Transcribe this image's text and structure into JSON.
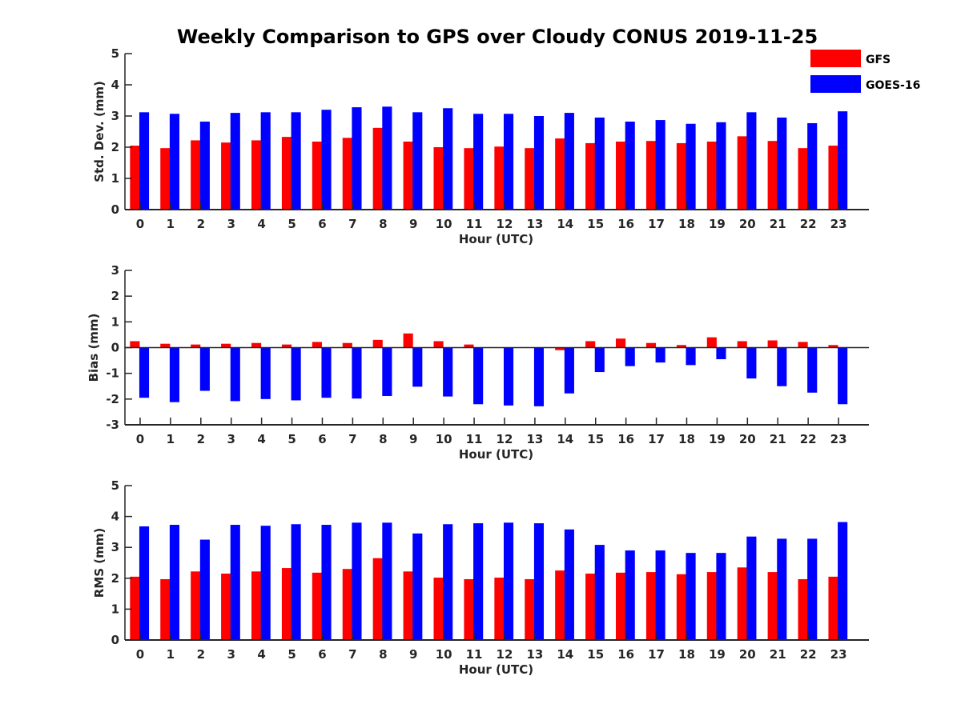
{
  "title": "Weekly Comparison to GPS over Cloudy CONUS 2019-11-25",
  "legend": {
    "placement": "top-right",
    "items": [
      {
        "label": "GFS",
        "color": "#ff0000"
      },
      {
        "label": "GOES-16",
        "color": "#0000ff"
      }
    ]
  },
  "chart_data": [
    {
      "type": "bar",
      "xlabel": "Hour (UTC)",
      "ylabel": "Std. Dev. (mm)",
      "ylim": [
        0,
        5
      ],
      "yticks": [
        0,
        1,
        2,
        3,
        4,
        5
      ],
      "categories": [
        "0",
        "1",
        "2",
        "3",
        "4",
        "5",
        "6",
        "7",
        "8",
        "9",
        "10",
        "11",
        "12",
        "13",
        "14",
        "15",
        "16",
        "17",
        "18",
        "19",
        "20",
        "21",
        "22",
        "23"
      ],
      "series": [
        {
          "name": "GFS",
          "color": "#ff0000",
          "values": [
            2.05,
            1.97,
            2.22,
            2.15,
            2.22,
            2.33,
            2.18,
            2.3,
            2.62,
            2.18,
            2.0,
            1.97,
            2.02,
            1.97,
            2.28,
            2.13,
            2.18,
            2.2,
            2.13,
            2.18,
            2.35,
            2.2,
            1.97,
            2.05
          ]
        },
        {
          "name": "GOES-16",
          "color": "#0000ff",
          "values": [
            3.12,
            3.07,
            2.82,
            3.1,
            3.12,
            3.12,
            3.2,
            3.28,
            3.3,
            3.12,
            3.25,
            3.07,
            3.07,
            3.0,
            3.1,
            2.95,
            2.82,
            2.87,
            2.75,
            2.8,
            3.12,
            2.95,
            2.77,
            3.15
          ]
        }
      ]
    },
    {
      "type": "bar",
      "xlabel": "Hour (UTC)",
      "ylabel": "Bias (mm)",
      "ylim": [
        -3,
        3
      ],
      "yticks": [
        -3,
        -2,
        -1,
        0,
        1,
        2,
        3
      ],
      "categories": [
        "0",
        "1",
        "2",
        "3",
        "4",
        "5",
        "6",
        "7",
        "8",
        "9",
        "10",
        "11",
        "12",
        "13",
        "14",
        "15",
        "16",
        "17",
        "18",
        "19",
        "20",
        "21",
        "22",
        "23"
      ],
      "series": [
        {
          "name": "GFS",
          "color": "#ff0000",
          "values": [
            0.25,
            0.15,
            0.12,
            0.15,
            0.18,
            0.12,
            0.22,
            0.18,
            0.3,
            0.55,
            0.25,
            0.12,
            0.0,
            0.0,
            -0.1,
            0.25,
            0.35,
            0.18,
            0.1,
            0.4,
            0.25,
            0.28,
            0.22,
            0.1
          ]
        },
        {
          "name": "GOES-16",
          "color": "#0000ff",
          "values": [
            -1.95,
            -2.12,
            -1.68,
            -2.08,
            -2.0,
            -2.05,
            -1.95,
            -1.98,
            -1.88,
            -1.52,
            -1.9,
            -2.2,
            -2.25,
            -2.28,
            -1.78,
            -0.95,
            -0.72,
            -0.58,
            -0.68,
            -0.45,
            -1.2,
            -1.5,
            -1.75,
            -2.2
          ]
        }
      ]
    },
    {
      "type": "bar",
      "xlabel": "Hour (UTC)",
      "ylabel": "RMS (mm)",
      "ylim": [
        0,
        5
      ],
      "yticks": [
        0,
        1,
        2,
        3,
        4,
        5
      ],
      "categories": [
        "0",
        "1",
        "2",
        "3",
        "4",
        "5",
        "6",
        "7",
        "8",
        "9",
        "10",
        "11",
        "12",
        "13",
        "14",
        "15",
        "16",
        "17",
        "18",
        "19",
        "20",
        "21",
        "22",
        "23"
      ],
      "series": [
        {
          "name": "GFS",
          "color": "#ff0000",
          "values": [
            2.05,
            1.97,
            2.22,
            2.15,
            2.22,
            2.33,
            2.18,
            2.3,
            2.65,
            2.22,
            2.02,
            1.97,
            2.02,
            1.97,
            2.25,
            2.15,
            2.18,
            2.2,
            2.13,
            2.2,
            2.35,
            2.2,
            1.97,
            2.05
          ]
        },
        {
          "name": "GOES-16",
          "color": "#0000ff",
          "values": [
            3.68,
            3.73,
            3.25,
            3.73,
            3.7,
            3.75,
            3.73,
            3.8,
            3.8,
            3.45,
            3.75,
            3.78,
            3.8,
            3.78,
            3.58,
            3.08,
            2.9,
            2.9,
            2.82,
            2.82,
            3.35,
            3.28,
            3.28,
            3.82
          ]
        }
      ]
    }
  ]
}
